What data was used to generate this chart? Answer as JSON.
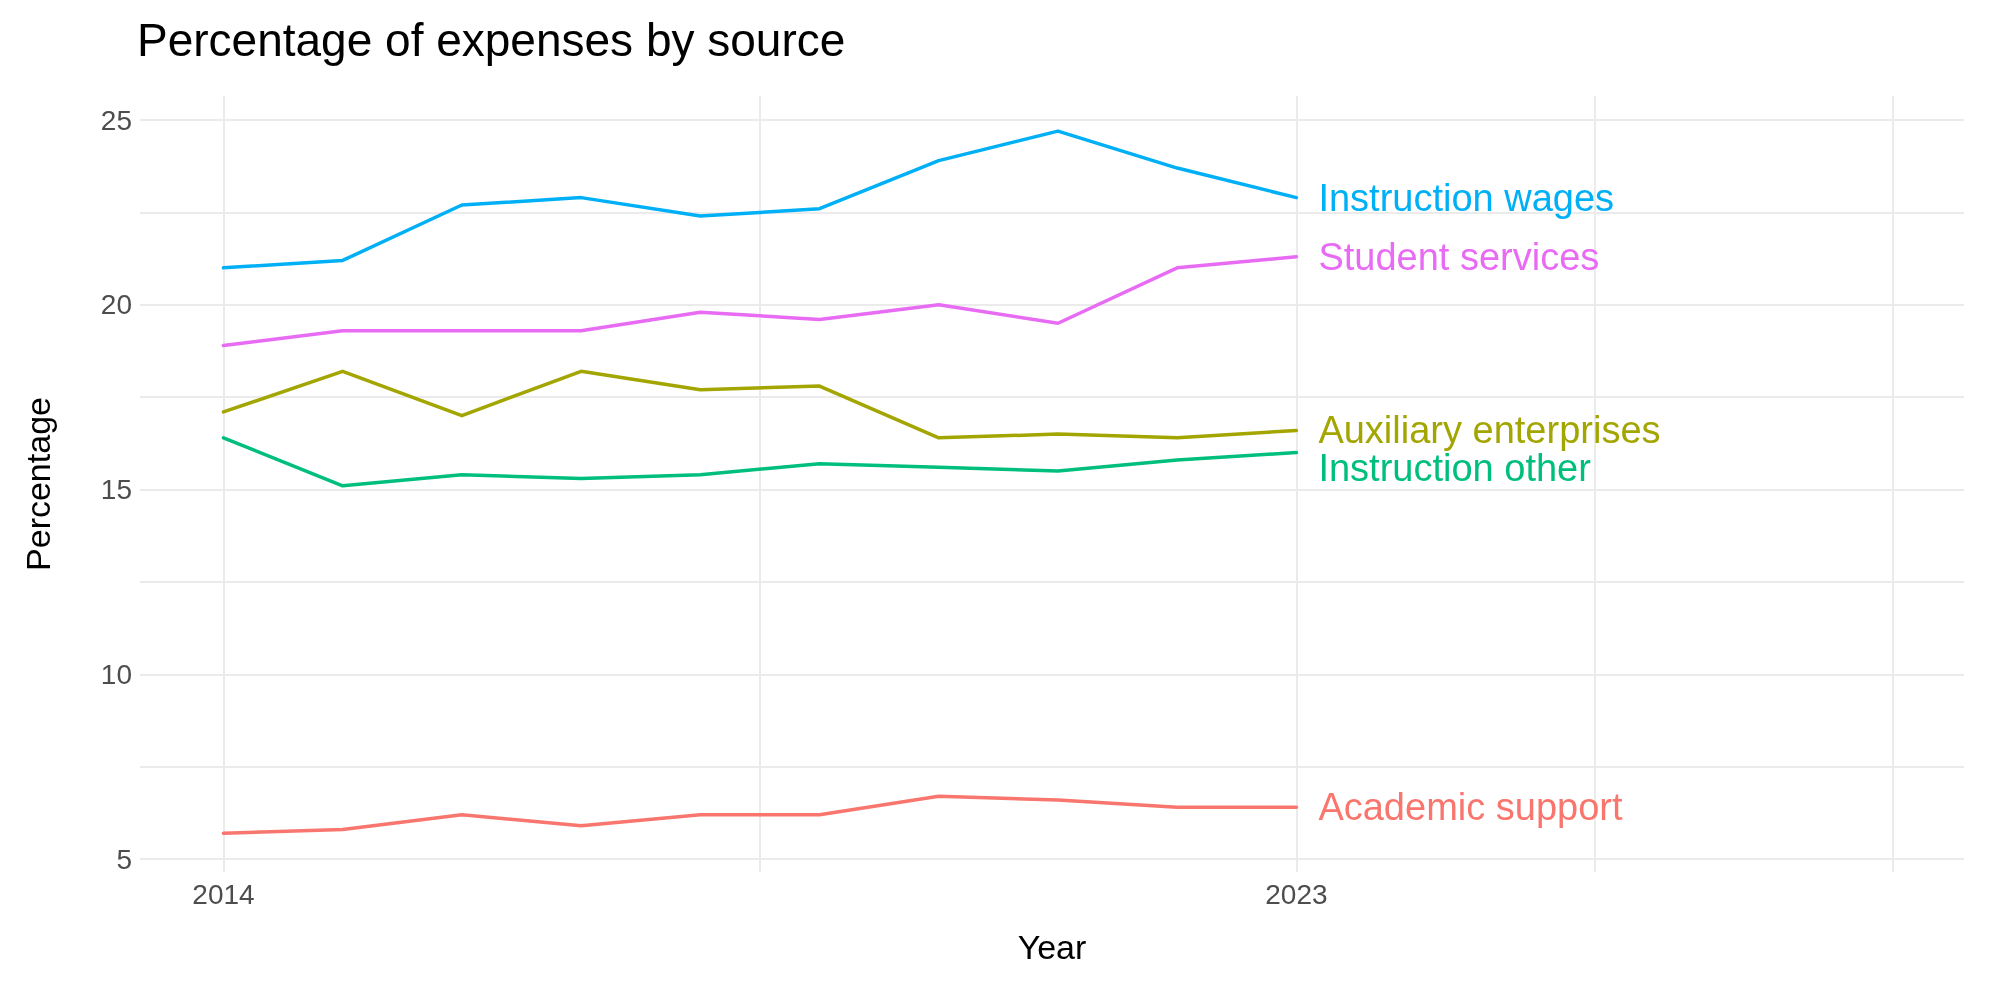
{
  "chart_data": {
    "type": "line",
    "title": "Percentage of expenses by source",
    "xlabel": "Year",
    "ylabel": "Percentage",
    "x": [
      2014,
      2015,
      2016,
      2017,
      2018,
      2019,
      2020,
      2021,
      2022,
      2023
    ],
    "xlim": [
      2013.3,
      2028.6
    ],
    "xticks": [
      2014,
      {
        "value": 2018.5,
        "label": null
      },
      2023,
      {
        "value": 2025.5,
        "label": null
      },
      {
        "value": 2028,
        "label": null
      }
    ],
    "ylim": [
      4.65,
      25.65
    ],
    "yticks": [
      5,
      {
        "value": 7.5,
        "label": null
      },
      10,
      {
        "value": 12.5,
        "label": null
      },
      15,
      {
        "value": 17.5,
        "label": null
      },
      20,
      {
        "value": 22.5,
        "label": null
      },
      25
    ],
    "grid": true,
    "legend": false,
    "line_style": "solid",
    "marker": "none",
    "series": [
      {
        "name": "Instruction wages",
        "color": "#00b0f6",
        "values": [
          21.0,
          21.2,
          22.7,
          22.9,
          22.4,
          22.6,
          23.9,
          24.7,
          23.7,
          22.9
        ]
      },
      {
        "name": "Student services",
        "color": "#e76bf3",
        "values": [
          18.9,
          19.3,
          19.3,
          19.3,
          19.8,
          19.6,
          20.0,
          19.5,
          21.0,
          21.3
        ]
      },
      {
        "name": "Auxiliary enterprises",
        "color": "#a3a500",
        "values": [
          17.1,
          18.2,
          17.0,
          18.2,
          17.7,
          17.8,
          16.4,
          16.5,
          16.4,
          16.6
        ]
      },
      {
        "name": "Instruction other",
        "color": "#00bf7d",
        "values": [
          16.4,
          15.1,
          15.4,
          15.3,
          15.4,
          15.7,
          15.6,
          15.5,
          15.8,
          16.0
        ]
      },
      {
        "name": "Academic support",
        "color": "#f8766d",
        "values": [
          5.7,
          5.8,
          6.2,
          5.9,
          6.2,
          6.2,
          6.7,
          6.6,
          6.4,
          6.4
        ]
      }
    ]
  }
}
